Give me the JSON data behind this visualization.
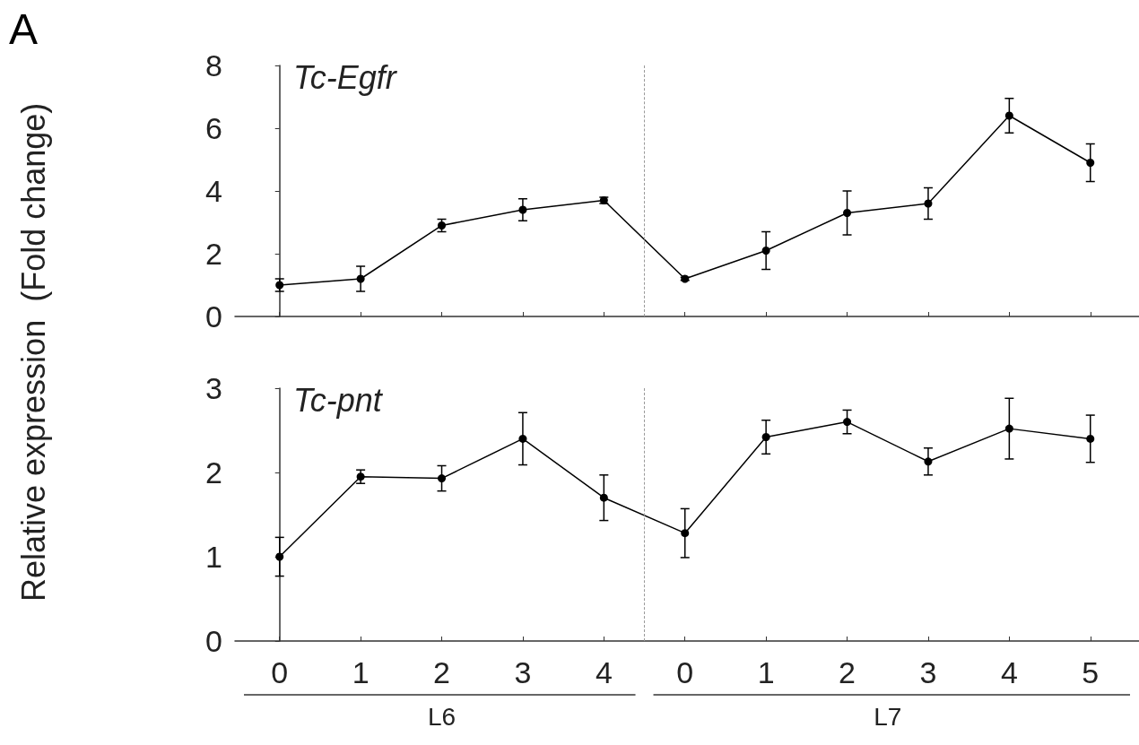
{
  "chart_data": [
    {
      "type": "line",
      "title": "Tc-Egfr",
      "ylabel": "Relative expression  (Fold change)",
      "annotations": [
        "A"
      ],
      "tick_labels": "y",
      "marker": "circle",
      "line_style": "solid",
      "grid": false,
      "categories": [
        "0",
        "1",
        "2",
        "3",
        "4",
        "0",
        "1",
        "2",
        "3",
        "4",
        "5"
      ],
      "ylim": [
        0,
        8
      ],
      "yticks": [
        0,
        2,
        4,
        6,
        8
      ],
      "series": [
        {
          "color": "#000000",
          "values": [
            1.0,
            1.2,
            2.9,
            3.4,
            3.7,
            1.2,
            2.1,
            3.3,
            3.6,
            6.4,
            4.9
          ],
          "errors": [
            0.2,
            0.4,
            0.2,
            0.35,
            0.1,
            0.05,
            0.6,
            0.7,
            0.5,
            0.55,
            0.6
          ]
        }
      ]
    },
    {
      "type": "line",
      "title": "Tc-pnt",
      "annotations": [
        "L6",
        "L7"
      ],
      "marker": "circle",
      "line_style": "solid",
      "grid": false,
      "categories": [
        "0",
        "1",
        "2",
        "3",
        "4",
        "0",
        "1",
        "2",
        "3",
        "4",
        "5"
      ],
      "ylim": [
        0,
        3
      ],
      "yticks": [
        0,
        1,
        2,
        3
      ],
      "series": [
        {
          "color": "#000000",
          "values": [
            1.0,
            1.95,
            1.93,
            2.4,
            1.7,
            1.28,
            2.42,
            2.6,
            2.13,
            2.52,
            2.4
          ],
          "errors": [
            0.23,
            0.08,
            0.15,
            0.31,
            0.27,
            0.29,
            0.2,
            0.14,
            0.16,
            0.36,
            0.28
          ]
        }
      ]
    }
  ]
}
